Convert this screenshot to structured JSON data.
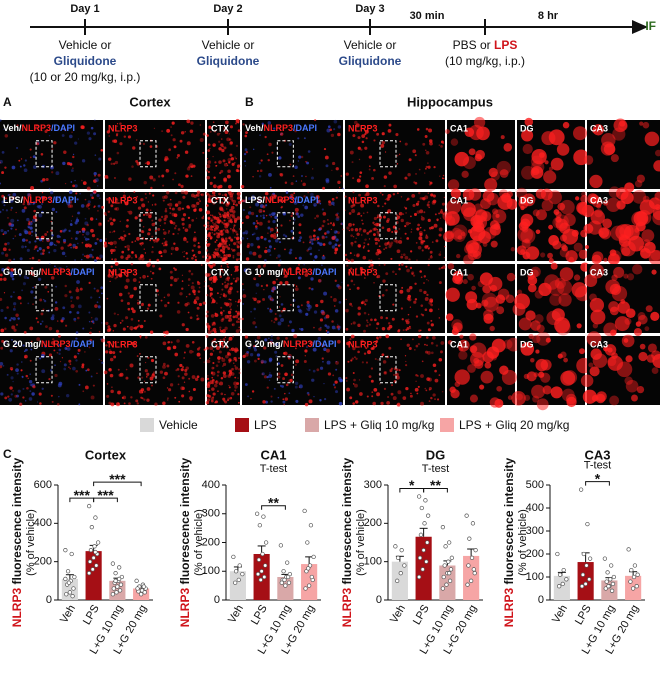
{
  "timeline": {
    "steps": [
      "Day 1",
      "Day 2",
      "Day 3"
    ],
    "delays": [
      "30 min",
      "8 hr"
    ],
    "end": "IF",
    "treatment": [
      "Vehicle or",
      "Gliquidone"
    ],
    "first_dose": "(10 or 20 mg/kg, i.p.)",
    "challenge": [
      "PBS or ",
      "LPS"
    ],
    "challenge_dose": "(10 mg/kg, i.p.)"
  },
  "panel_a": {
    "letter": "A",
    "title": "Cortex",
    "columns": [
      "NLRP3",
      "CTX"
    ]
  },
  "panel_b": {
    "letter": "B",
    "title": "Hippocampus",
    "columns": [
      "NLRP3",
      "CA1",
      "DG",
      "CA3"
    ]
  },
  "rows": [
    [
      "Veh/",
      "NLRP3",
      "/DAPI"
    ],
    [
      "LPS/",
      "NLRP3",
      "/DAPI"
    ],
    [
      "G 10 mg/",
      "NLRP3",
      "/DAPI"
    ],
    [
      "G 20 mg/",
      "NLRP3",
      "/DAPI"
    ]
  ],
  "panel_c": {
    "letter": "C"
  },
  "legend": [
    {
      "name": "Vehicle",
      "color": "#d9d9d9"
    },
    {
      "name": "LPS",
      "color": "#a50f15"
    },
    {
      "name": "LPS + Gliq 10 mg/kg",
      "color": "#d9a8a8"
    },
    {
      "name": "LPS + Gliq 20 mg/kg",
      "color": "#f6a5a5"
    }
  ],
  "y_label": {
    "marker": "NLRP3",
    "rest": " fluorescence intensity",
    "unit": "(% of vehicle)"
  },
  "chart_data": [
    {
      "type": "bar",
      "title": "Cortex",
      "categories": [
        "Veh",
        "LPS",
        "L+G 10 mg",
        "L+G 20 mg"
      ],
      "values": [
        110,
        255,
        100,
        60
      ],
      "errors": [
        22,
        30,
        14,
        10
      ],
      "points": [
        [
          260,
          240,
          150,
          120,
          100,
          80,
          60,
          40,
          30,
          20,
          90,
          110
        ],
        [
          490,
          430,
          380,
          300,
          280,
          260,
          240,
          220,
          200,
          180,
          160,
          140,
          250
        ],
        [
          190,
          170,
          140,
          120,
          100,
          90,
          80,
          70,
          60,
          50,
          40,
          30,
          110,
          100
        ],
        [
          100,
          80,
          70,
          60,
          50,
          45,
          40,
          30,
          60,
          70
        ]
      ],
      "ylim": [
        0,
        600
      ],
      "yticks": [
        0,
        200,
        400,
        600
      ],
      "annotations": [
        {
          "label": "***",
          "from": "Veh",
          "to": "LPS"
        },
        {
          "label": "***",
          "from": "LPS",
          "to": "L+G 10 mg"
        },
        {
          "label": "***",
          "from": "LPS",
          "to": "L+G 20 mg"
        }
      ]
    },
    {
      "type": "bar",
      "title": "CA1",
      "categories": [
        "Veh",
        "LPS",
        "L+G 10 mg",
        "L+G 20 mg"
      ],
      "values": [
        100,
        160,
        80,
        125
      ],
      "errors": [
        15,
        28,
        9,
        25
      ],
      "points": [
        [
          150,
          120,
          100,
          90,
          70,
          60
        ],
        [
          300,
          290,
          260,
          200,
          160,
          140,
          120,
          100,
          90,
          80,
          70
        ],
        [
          190,
          130,
          100,
          90,
          80,
          70,
          60,
          50,
          60,
          80,
          70
        ],
        [
          310,
          260,
          200,
          150,
          120,
          100,
          70,
          50,
          40,
          80,
          110
        ]
      ],
      "ylim": [
        0,
        400
      ],
      "yticks": [
        0,
        100,
        200,
        300,
        400
      ],
      "test": "T-test",
      "annotations": [
        {
          "label": "**",
          "from": "LPS",
          "to": "L+G 10 mg"
        }
      ]
    },
    {
      "type": "bar",
      "title": "DG",
      "categories": [
        "Veh",
        "LPS",
        "L+G 10 mg",
        "L+G 20 mg"
      ],
      "values": [
        100,
        165,
        90,
        115
      ],
      "errors": [
        14,
        22,
        12,
        18
      ],
      "points": [
        [
          140,
          130,
          110,
          90,
          70,
          50
        ],
        [
          270,
          260,
          240,
          220,
          200,
          170,
          150,
          130,
          110,
          100,
          80,
          60
        ],
        [
          190,
          150,
          140,
          110,
          100,
          90,
          80,
          70,
          60,
          50,
          40,
          30,
          70
        ],
        [
          220,
          200,
          160,
          130,
          110,
          90,
          70,
          50,
          40,
          80
        ]
      ],
      "ylim": [
        0,
        300
      ],
      "yticks": [
        0,
        100,
        200,
        300
      ],
      "test": "T-test",
      "annotations": [
        {
          "label": "*",
          "from": "Veh",
          "to": "LPS"
        },
        {
          "label": "**",
          "from": "LPS",
          "to": "L+G 10 mg"
        }
      ]
    },
    {
      "type": "bar",
      "title": "CA3",
      "categories": [
        "Veh",
        "LPS",
        "L+G 10 mg",
        "L+G 20 mg"
      ],
      "values": [
        105,
        165,
        85,
        105
      ],
      "errors": [
        15,
        40,
        12,
        18
      ],
      "points": [
        [
          200,
          130,
          110,
          90,
          70,
          60
        ],
        [
          480,
          330,
          200,
          180,
          150,
          110,
          90,
          70,
          60
        ],
        [
          180,
          150,
          120,
          100,
          90,
          80,
          70,
          60,
          50,
          40,
          60
        ],
        [
          220,
          150,
          130,
          110,
          100,
          80,
          60,
          50
        ]
      ],
      "ylim": [
        0,
        500
      ],
      "yticks": [
        0,
        100,
        200,
        300,
        400,
        500
      ],
      "test": "T-test",
      "annotations": [
        {
          "label": "*",
          "from": "LPS",
          "to": "L+G 10 mg"
        }
      ]
    }
  ]
}
